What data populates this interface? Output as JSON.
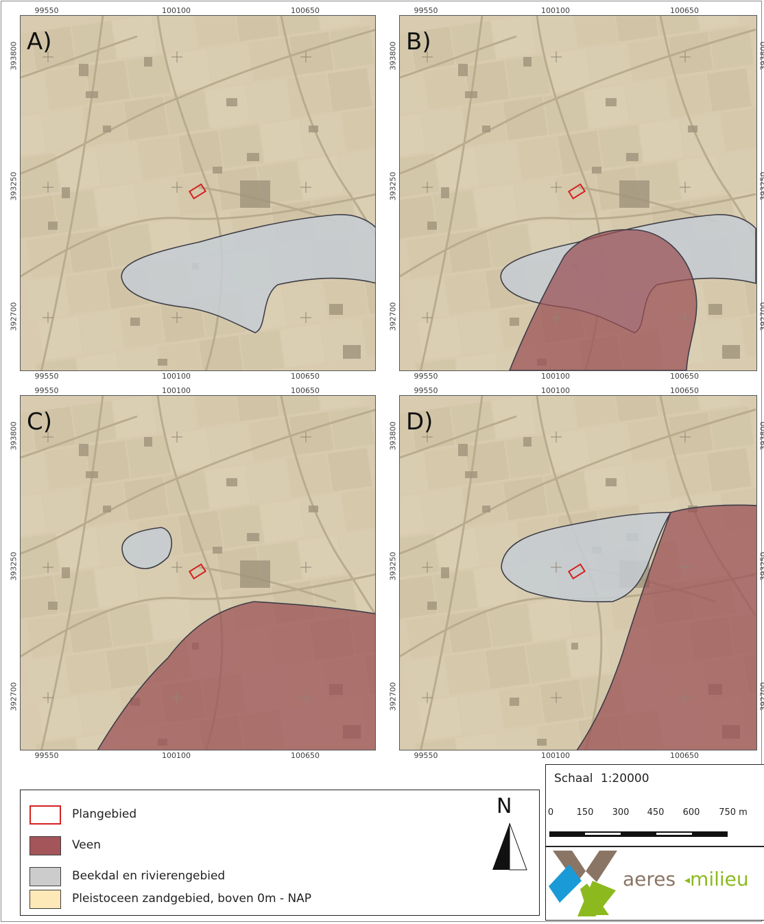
{
  "panels": [
    {
      "label": "A)",
      "layers": [
        "beekdal"
      ]
    },
    {
      "label": "B)",
      "layers": [
        "beekdal",
        "veen_b"
      ]
    },
    {
      "label": "C)",
      "layers": [
        "beekdal_c",
        "veen_c"
      ]
    },
    {
      "label": "D)",
      "layers": [
        "beekdal_d",
        "veen_d"
      ]
    }
  ],
  "axis_labels": {
    "x": [
      "99550",
      "100100",
      "100650"
    ],
    "y": [
      "393800",
      "393250",
      "392700"
    ]
  },
  "legend": {
    "items": [
      {
        "label": "Plangebied",
        "fill": "#ffffff",
        "stroke": "#d42020"
      },
      {
        "label": "Veen",
        "fill": "#a35559",
        "stroke": "#3a3a3a"
      },
      {
        "label": "Beekdal en rivierengebied",
        "fill": "#cccccc",
        "stroke": "#3a3a3a"
      },
      {
        "label": "Pleistoceen zandgebied, boven 0m - NAP",
        "fill": "#fde8b8",
        "stroke": "#3a3a3a"
      }
    ],
    "north_label": "N"
  },
  "scale": {
    "title": "Schaal",
    "ratio": "1:20000",
    "ticks": [
      "0",
      "150",
      "300",
      "450",
      "600",
      "750 m"
    ]
  },
  "logo": {
    "text_part1": "aeres",
    "text_part2": "milieu",
    "colors": {
      "brown": "#8a7565",
      "blue": "#1a9ad6",
      "green": "#8cba1e"
    }
  },
  "colors": {
    "basemap": "#d8cbb0",
    "veen_overlay": "#9a4f55",
    "beekdal_overlay": "#c6ccd4"
  }
}
